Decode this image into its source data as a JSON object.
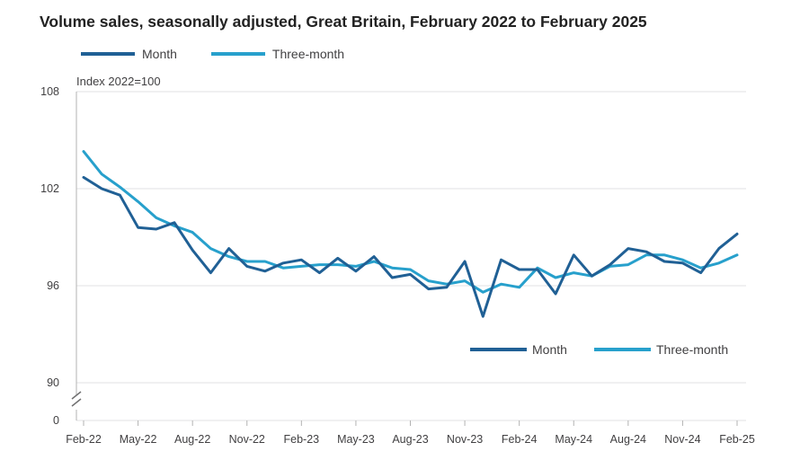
{
  "chart_data": {
    "type": "line",
    "title": "Volume sales, seasonally adjusted, Great Britain, February 2022 to February 2025",
    "ylabel": "Index 2022=100",
    "xlabel": "",
    "ylim": [
      90,
      108
    ],
    "y_break_label": "0",
    "yticks": [
      90,
      96,
      102,
      108
    ],
    "x_tick_labels": [
      "Feb-22",
      "May-22",
      "Aug-22",
      "Nov-22",
      "Feb-23",
      "May-23",
      "Aug-23",
      "Nov-23",
      "Feb-24",
      "May-24",
      "Aug-24",
      "Nov-24",
      "Feb-25"
    ],
    "x": [
      "Feb-22",
      "Mar-22",
      "Apr-22",
      "May-22",
      "Jun-22",
      "Jul-22",
      "Aug-22",
      "Sep-22",
      "Oct-22",
      "Nov-22",
      "Dec-22",
      "Jan-23",
      "Feb-23",
      "Mar-23",
      "Apr-23",
      "May-23",
      "Jun-23",
      "Jul-23",
      "Aug-23",
      "Sep-23",
      "Oct-23",
      "Nov-23",
      "Dec-23",
      "Jan-24",
      "Feb-24",
      "Mar-24",
      "Apr-24",
      "May-24",
      "Jun-24",
      "Jul-24",
      "Aug-24",
      "Sep-24",
      "Oct-24",
      "Nov-24",
      "Dec-24",
      "Jan-25",
      "Feb-25"
    ],
    "series": [
      {
        "name": "Month",
        "color": "#206095",
        "values": [
          102.7,
          102.0,
          101.6,
          99.6,
          99.5,
          99.9,
          98.2,
          96.8,
          98.3,
          97.2,
          96.9,
          97.4,
          97.6,
          96.8,
          97.7,
          96.9,
          97.8,
          96.5,
          96.7,
          95.8,
          95.9,
          97.5,
          94.1,
          97.6,
          97.0,
          97.0,
          95.5,
          97.9,
          96.6,
          97.3,
          98.3,
          98.1,
          97.5,
          97.4,
          96.8,
          98.3,
          99.2
        ]
      },
      {
        "name": "Three-month",
        "color": "#27a0cc",
        "values": [
          104.3,
          102.9,
          102.1,
          101.2,
          100.2,
          99.7,
          99.3,
          98.3,
          97.8,
          97.5,
          97.5,
          97.1,
          97.2,
          97.3,
          97.3,
          97.2,
          97.5,
          97.1,
          97.0,
          96.3,
          96.1,
          96.3,
          95.6,
          96.1,
          95.9,
          97.1,
          96.5,
          96.8,
          96.6,
          97.2,
          97.3,
          97.9,
          97.9,
          97.6,
          97.1,
          97.4,
          97.9
        ]
      }
    ],
    "legends": [
      {
        "position": "top-left",
        "entries": [
          "Month",
          "Three-month"
        ]
      },
      {
        "position": "bottom-right",
        "entries": [
          "Month",
          "Three-month"
        ]
      }
    ],
    "grid": true
  }
}
